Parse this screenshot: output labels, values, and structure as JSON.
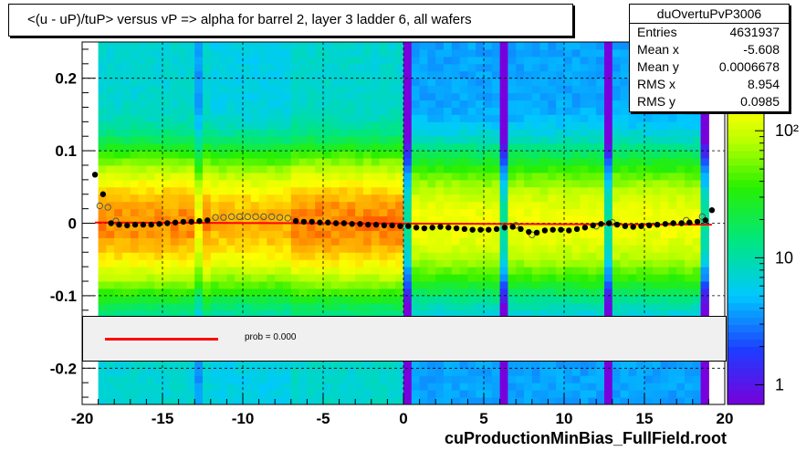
{
  "title": "<(u - uP)/tuP> versus   vP => alpha for barrel 2, layer 3 ladder 6, all wafers",
  "stats": {
    "name": "duOvertuPvP3006",
    "rows": [
      {
        "label": "Entries",
        "value": "4631937"
      },
      {
        "label": "Mean x",
        "value": "-5.608"
      },
      {
        "label": "Mean y",
        "value": "0.0006678"
      },
      {
        "label": "RMS x",
        "value": "8.954"
      },
      {
        "label": "RMS y",
        "value": "0.0985"
      }
    ]
  },
  "legend": {
    "fit_text": "prob = 0.000",
    "fit_color": "#ff0000"
  },
  "footer": "cuProductionMinBias_FullField.root",
  "chart_data": {
    "type": "heatmap",
    "xlim": [
      -20,
      20
    ],
    "ylim": [
      -0.25,
      0.25
    ],
    "x_ticks": [
      "-20",
      "-15",
      "-10",
      "-5",
      "0",
      "5",
      "10",
      "15",
      "20"
    ],
    "y_ticks": [
      "-0.2",
      "-0.1",
      "0",
      "0.1",
      "0.2"
    ],
    "y_tick_values": [
      -0.2,
      -0.1,
      0,
      0.1,
      0.2
    ],
    "grid": true,
    "z_scale": "log",
    "z_ticks": [
      {
        "value": 1,
        "label": "1"
      },
      {
        "value": 10,
        "label": "10"
      },
      {
        "value": 100,
        "label": "10²"
      }
    ],
    "z_range": [
      0.7,
      500
    ],
    "data_x_range": [
      -19.2,
      19.2
    ],
    "profile_black": [
      {
        "x": -19.2,
        "y": 0.067
      },
      {
        "x": -18.7,
        "y": 0.04
      },
      {
        "x": -18.2,
        "y": 0.0
      },
      {
        "x": -17.7,
        "y": -0.002
      },
      {
        "x": -17.2,
        "y": -0.003
      },
      {
        "x": -16.7,
        "y": -0.002
      },
      {
        "x": -16.2,
        "y": -0.002
      },
      {
        "x": -15.7,
        "y": -0.002
      },
      {
        "x": -15.2,
        "y": -0.001
      },
      {
        "x": -14.7,
        "y": 0.0
      },
      {
        "x": -14.2,
        "y": 0.001
      },
      {
        "x": -13.7,
        "y": 0.002
      },
      {
        "x": -13.2,
        "y": 0.002
      },
      {
        "x": -12.7,
        "y": 0.003
      },
      {
        "x": -12.2,
        "y": 0.004
      },
      {
        "x": -6.7,
        "y": 0.003
      },
      {
        "x": -6.2,
        "y": 0.002
      },
      {
        "x": -5.7,
        "y": 0.002
      },
      {
        "x": -5.2,
        "y": 0.001
      },
      {
        "x": -4.7,
        "y": 0.001
      },
      {
        "x": -4.2,
        "y": 0.0
      },
      {
        "x": -3.7,
        "y": 0.0
      },
      {
        "x": -3.2,
        "y": -0.001
      },
      {
        "x": -2.7,
        "y": -0.001
      },
      {
        "x": -2.2,
        "y": -0.002
      },
      {
        "x": -1.7,
        "y": -0.002
      },
      {
        "x": -1.2,
        "y": -0.003
      },
      {
        "x": -0.7,
        "y": -0.003
      },
      {
        "x": -0.2,
        "y": -0.004
      },
      {
        "x": 0.3,
        "y": -0.004
      },
      {
        "x": 0.8,
        "y": -0.006
      },
      {
        "x": 1.3,
        "y": -0.007
      },
      {
        "x": 1.8,
        "y": -0.006
      },
      {
        "x": 2.3,
        "y": -0.005
      },
      {
        "x": 2.8,
        "y": -0.006
      },
      {
        "x": 3.3,
        "y": -0.007
      },
      {
        "x": 3.8,
        "y": -0.008
      },
      {
        "x": 4.3,
        "y": -0.009
      },
      {
        "x": 4.8,
        "y": -0.009
      },
      {
        "x": 5.3,
        "y": -0.009
      },
      {
        "x": 5.8,
        "y": -0.008
      },
      {
        "x": 6.3,
        "y": -0.006
      },
      {
        "x": 6.8,
        "y": -0.005
      },
      {
        "x": 7.3,
        "y": -0.008
      },
      {
        "x": 7.8,
        "y": -0.012
      },
      {
        "x": 8.3,
        "y": -0.013
      },
      {
        "x": 8.8,
        "y": -0.01
      },
      {
        "x": 9.3,
        "y": -0.009
      },
      {
        "x": 9.8,
        "y": -0.009
      },
      {
        "x": 10.3,
        "y": -0.01
      },
      {
        "x": 10.8,
        "y": -0.008
      },
      {
        "x": 11.3,
        "y": -0.006
      },
      {
        "x": 11.8,
        "y": -0.003
      },
      {
        "x": 12.3,
        "y": -0.001
      },
      {
        "x": 12.8,
        "y": 0.0
      },
      {
        "x": 13.3,
        "y": -0.002
      },
      {
        "x": 13.8,
        "y": -0.004
      },
      {
        "x": 14.3,
        "y": -0.005
      },
      {
        "x": 14.8,
        "y": -0.004
      },
      {
        "x": 15.3,
        "y": -0.003
      },
      {
        "x": 15.8,
        "y": -0.002
      },
      {
        "x": 16.3,
        "y": -0.001
      },
      {
        "x": 16.8,
        "y": 0.0
      },
      {
        "x": 17.3,
        "y": 0.0
      },
      {
        "x": 17.8,
        "y": 0.001
      },
      {
        "x": 18.3,
        "y": 0.002
      },
      {
        "x": 18.8,
        "y": 0.004
      },
      {
        "x": 19.2,
        "y": 0.018
      }
    ],
    "profile_open": [
      {
        "x": -18.9,
        "y": 0.024
      },
      {
        "x": -18.4,
        "y": 0.022
      },
      {
        "x": -17.9,
        "y": 0.003
      },
      {
        "x": -11.7,
        "y": 0.008
      },
      {
        "x": -11.2,
        "y": 0.008
      },
      {
        "x": -10.7,
        "y": 0.009
      },
      {
        "x": -10.2,
        "y": 0.009
      },
      {
        "x": -9.7,
        "y": 0.009
      },
      {
        "x": -9.2,
        "y": 0.009
      },
      {
        "x": -8.7,
        "y": 0.009
      },
      {
        "x": -8.2,
        "y": 0.009
      },
      {
        "x": -7.7,
        "y": 0.008
      },
      {
        "x": -7.2,
        "y": 0.007
      },
      {
        "x": 7.0,
        "y": -0.003
      },
      {
        "x": 8.0,
        "y": -0.016
      },
      {
        "x": 12.0,
        "y": -0.004
      },
      {
        "x": 13.0,
        "y": 0.001
      },
      {
        "x": 17.6,
        "y": 0.004
      },
      {
        "x": 18.6,
        "y": 0.009
      }
    ],
    "fit_line": {
      "x": [
        -19.2,
        19.2
      ],
      "y": [
        0.001,
        -0.002
      ],
      "color": "#ff0000"
    }
  }
}
